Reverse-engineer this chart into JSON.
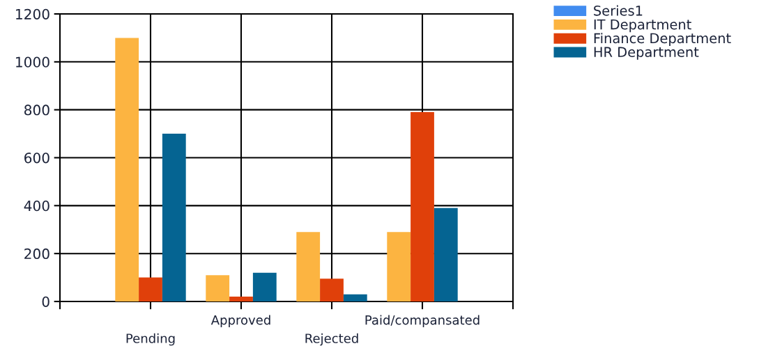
{
  "chart_data": {
    "type": "bar",
    "categories": [
      "Pending",
      "Approved",
      "Rejected",
      "Paid/compansated"
    ],
    "series": [
      {
        "name": "Series1",
        "color": "#418cf0",
        "values": [
          null,
          null,
          null,
          null
        ]
      },
      {
        "name": "IT Department",
        "color": "#fcb441",
        "values": [
          1100,
          110,
          290,
          290
        ]
      },
      {
        "name": "Finance Department",
        "color": "#e0400a",
        "values": [
          100,
          20,
          95,
          790
        ]
      },
      {
        "name": "HR Department",
        "color": "#056492",
        "values": [
          700,
          120,
          30,
          390
        ]
      }
    ],
    "ylim": [
      0,
      1200
    ],
    "yticks": [
      0,
      200,
      400,
      600,
      800,
      1000,
      1200
    ],
    "grid": true,
    "legend": "top right"
  }
}
